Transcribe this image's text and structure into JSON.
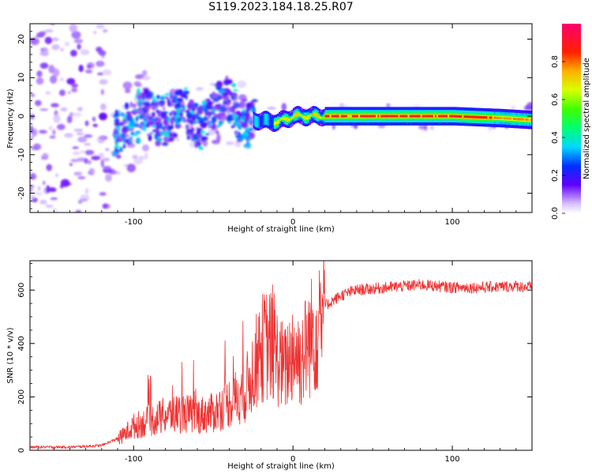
{
  "title": "S119.2023.184.18.25.R07",
  "colors": {
    "snr_line": "#ee3333",
    "frame": "#000000",
    "background": "#ffffff"
  },
  "chart_data": [
    {
      "type": "heatmap",
      "xlabel": "Height of straight line (km)",
      "ylabel": "Frequency (Hz)",
      "xlim": [
        -165,
        150
      ],
      "ylim": [
        -25,
        24
      ],
      "xticks": [
        -100,
        0,
        100
      ],
      "yticks": [
        -20,
        -10,
        0,
        10,
        20
      ],
      "colorbar": {
        "label": "Normalized spectral amplitude",
        "range": [
          0,
          1
        ],
        "ticks": [
          0.0,
          0.2,
          0.4,
          0.6,
          0.8
        ],
        "colormap": "rainbow (transparent/purple → blue → cyan → green → yellow → orange → red → magenta)"
      },
      "ridge_center_hz": [
        {
          "x": -110,
          "y": -3
        },
        {
          "x": -80,
          "y": 1
        },
        {
          "x": -60,
          "y": -1
        },
        {
          "x": -40,
          "y": 2
        },
        {
          "x": -25,
          "y": -1
        },
        {
          "x": -10,
          "y": -1.5
        },
        {
          "x": 0,
          "y": 0
        },
        {
          "x": 20,
          "y": 0
        },
        {
          "x": 100,
          "y": 0
        },
        {
          "x": 130,
          "y": -0.5
        },
        {
          "x": 150,
          "y": -1
        }
      ]
    },
    {
      "type": "line",
      "xlabel": "Height of straight line (km)",
      "ylabel": "SNR (10 * v/v)",
      "xlim": [
        -165,
        150
      ],
      "ylim": [
        0,
        710
      ],
      "xticks": [
        -100,
        0,
        100
      ],
      "yticks": [
        0,
        200,
        400,
        600
      ],
      "series": [
        {
          "x": [
            -165,
            -140,
            -120,
            -108,
            -100,
            -90,
            -80,
            -70,
            -60,
            -50,
            -40,
            -30,
            -25,
            -20,
            -15,
            -10,
            -5,
            0,
            5,
            10,
            15,
            20,
            30,
            40,
            60,
            80,
            100,
            120,
            140,
            150
          ],
          "y": [
            12,
            12,
            18,
            50,
            90,
            110,
            130,
            140,
            130,
            140,
            180,
            220,
            300,
            380,
            400,
            350,
            300,
            380,
            340,
            410,
            460,
            540,
            580,
            600,
            610,
            620,
            610,
            610,
            615,
            610
          ]
        }
      ]
    }
  ]
}
